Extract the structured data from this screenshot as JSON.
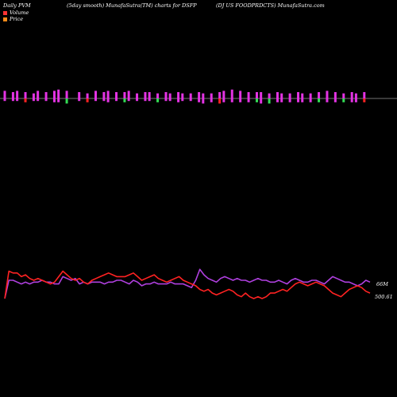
{
  "header": {
    "left": "Daily PVM",
    "middle": "(5day smooth) MunafaSutra(TM) charts for DSFP",
    "right": "(DJ US FOODPRDCTS) MunafaSutra.com"
  },
  "legend": [
    {
      "label": "Volume",
      "color": "#ff3333"
    },
    {
      "label": "Price",
      "color": "#ff8c1a"
    }
  ],
  "colors": {
    "background": "#000000",
    "up_bar": "#e333e3",
    "down_bar": "#33dd55",
    "strong_down_bar": "#ff2222",
    "price_line": "#ff2222",
    "volume_line": "#b040e0",
    "baseline": "#999999"
  },
  "chart_data": {
    "type": "line",
    "volume_label": "66M",
    "price_label": "500.61",
    "bars": {
      "x": [
        0,
        1,
        2,
        3,
        4,
        5,
        6,
        7,
        8,
        9,
        10,
        11,
        12,
        13,
        14,
        15,
        16,
        17,
        18,
        19,
        20,
        21,
        22,
        23,
        24,
        25,
        26,
        27,
        28,
        29,
        30,
        31,
        32,
        33,
        34,
        35,
        36,
        37,
        38,
        39,
        40,
        41,
        42,
        43,
        44,
        45,
        46,
        47,
        48,
        49,
        50,
        51,
        52,
        53,
        54,
        55,
        56,
        57,
        58,
        59,
        60,
        61,
        62,
        63,
        64,
        65,
        66,
        67,
        68,
        69,
        70,
        71,
        72,
        73,
        74,
        75,
        76,
        77,
        78,
        79,
        80,
        81,
        82,
        83,
        84,
        85,
        86,
        87,
        88
      ],
      "up": [
        6,
        0,
        5,
        6,
        0,
        5,
        0,
        4,
        6,
        0,
        5,
        0,
        6,
        7,
        0,
        6,
        0,
        0,
        5,
        0,
        4,
        0,
        6,
        0,
        5,
        6,
        0,
        5,
        0,
        5,
        6,
        0,
        4,
        0,
        5,
        5,
        0,
        4,
        0,
        5,
        4,
        0,
        5,
        4,
        0,
        4,
        0,
        5,
        4,
        0,
        4,
        0,
        5,
        6,
        0,
        7,
        0,
        6,
        0,
        5,
        0,
        5,
        5,
        0,
        4,
        0,
        5,
        4,
        0,
        4,
        0,
        5,
        4,
        0,
        4,
        0,
        5,
        0,
        6,
        0,
        5,
        0,
        4,
        0,
        5,
        4,
        0,
        5,
        0
      ],
      "down": [
        -2,
        0,
        -2,
        -2,
        0,
        -3,
        0,
        -2,
        -2,
        0,
        -2,
        0,
        -3,
        -3,
        0,
        -4,
        0,
        0,
        -2,
        0,
        -3,
        0,
        -2,
        0,
        -2,
        -3,
        0,
        -2,
        0,
        -3,
        -2,
        0,
        -2,
        0,
        -2,
        -2,
        0,
        -3,
        0,
        -2,
        -2,
        0,
        -3,
        -2,
        0,
        -2,
        0,
        -3,
        -4,
        0,
        -3,
        0,
        -4,
        -3,
        0,
        -3,
        0,
        -3,
        0,
        -3,
        0,
        -3,
        -4,
        0,
        -4,
        0,
        -3,
        -3,
        0,
        -3,
        0,
        -3,
        -3,
        0,
        -3,
        0,
        -3,
        0,
        -3,
        0,
        -3,
        0,
        -3,
        0,
        -3,
        -3,
        0,
        -3,
        0
      ],
      "kind": [
        "u",
        "n",
        "u",
        "u",
        "n",
        "d",
        "n",
        "u",
        "u",
        "n",
        "u",
        "n",
        "u",
        "u",
        "n",
        "g",
        "n",
        "n",
        "u",
        "n",
        "r",
        "n",
        "u",
        "n",
        "u",
        "u",
        "n",
        "u",
        "n",
        "g",
        "u",
        "n",
        "u",
        "n",
        "u",
        "u",
        "n",
        "g",
        "n",
        "u",
        "u",
        "n",
        "u",
        "u",
        "n",
        "u",
        "n",
        "u",
        "u",
        "n",
        "u",
        "n",
        "r",
        "u",
        "n",
        "u",
        "n",
        "u",
        "n",
        "u",
        "n",
        "g",
        "u",
        "n",
        "g",
        "n",
        "u",
        "u",
        "n",
        "u",
        "n",
        "u",
        "u",
        "n",
        "u",
        "n",
        "g",
        "n",
        "u",
        "n",
        "u",
        "n",
        "g",
        "n",
        "u",
        "u",
        "n",
        "r",
        "n"
      ]
    },
    "series": [
      {
        "name": "Price",
        "values": [
          20,
          5,
          6,
          6,
          8,
          7,
          9,
          10,
          9,
          10,
          11,
          12,
          11,
          8,
          5,
          7,
          9,
          10,
          9,
          11,
          12,
          10,
          9,
          8,
          7,
          6,
          7,
          8,
          8,
          8,
          7,
          6,
          8,
          10,
          9,
          8,
          7,
          9,
          10,
          11,
          10,
          9,
          8,
          10,
          11,
          12,
          13,
          15,
          16,
          15,
          17,
          18,
          17,
          16,
          15,
          16,
          18,
          19,
          17,
          19,
          20,
          19,
          20,
          19,
          17,
          17,
          16,
          15,
          16,
          14,
          12,
          11,
          12,
          13,
          12,
          11,
          12,
          13,
          15,
          17,
          18,
          19,
          17,
          15,
          14,
          13,
          14,
          16,
          17
        ]
      },
      {
        "name": "Volume",
        "values": [
          20,
          10,
          10,
          11,
          12,
          11,
          12,
          11,
          11,
          10,
          11,
          11,
          12,
          12,
          8,
          9,
          10,
          9,
          12,
          11,
          12,
          11,
          11,
          11,
          12,
          11,
          11,
          10,
          10,
          11,
          12,
          10,
          11,
          13,
          12,
          12,
          11,
          12,
          12,
          12,
          11,
          12,
          12,
          12,
          13,
          14,
          10,
          4,
          7,
          9,
          10,
          11,
          9,
          8,
          9,
          10,
          9,
          10,
          10,
          11,
          10,
          9,
          10,
          10,
          11,
          11,
          10,
          11,
          12,
          10,
          9,
          10,
          11,
          11,
          10,
          10,
          11,
          12,
          10,
          8,
          9,
          10,
          11,
          11,
          12,
          13,
          12,
          10,
          11
        ]
      }
    ]
  }
}
